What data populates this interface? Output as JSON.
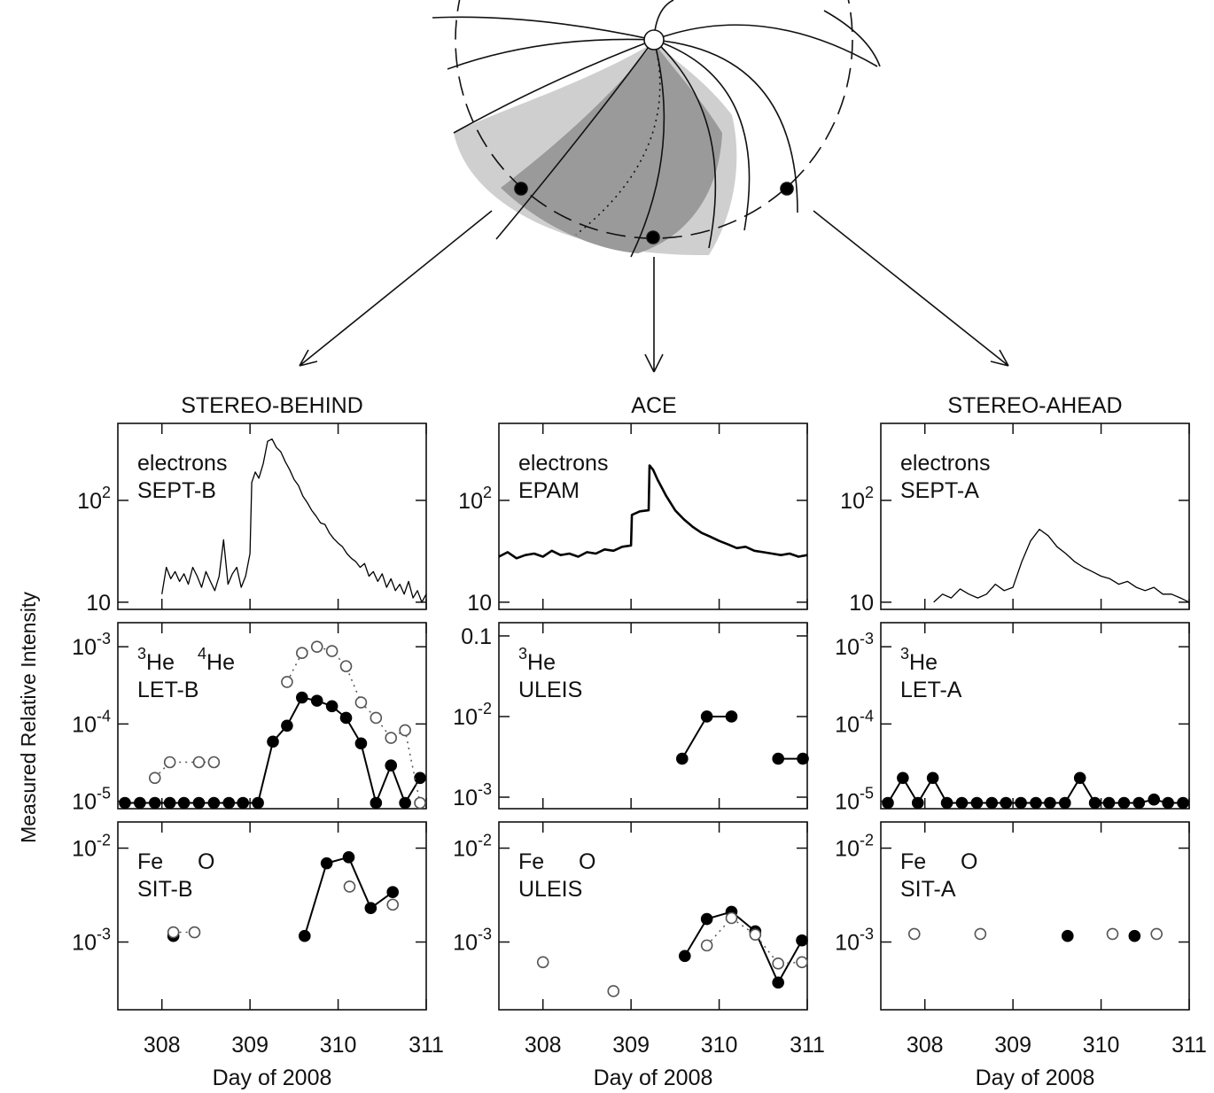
{
  "figure": {
    "ylabel": "Measured Relative Intensity",
    "columns": [
      "STEREO-BEHIND",
      "ACE",
      "STEREO-AHEAD"
    ]
  },
  "chart_data": [
    {
      "type": "line",
      "log_y": true,
      "labels": [
        "electrons",
        "SEPT-B"
      ],
      "xlim": [
        307.5,
        311
      ],
      "xticks": [
        308,
        309,
        310,
        311
      ],
      "ylim": [
        8.5,
        570
      ],
      "yticks": [
        10,
        {
          "value": 100,
          "label": "10",
          "exponent": "2"
        }
      ],
      "series": [
        {
          "color": "#000000",
          "marker": "none",
          "line": "solid",
          "linewidth": 1.3,
          "x": [
            308.0,
            308.05,
            308.1,
            308.15,
            308.2,
            308.25,
            308.3,
            308.35,
            308.4,
            308.45,
            308.5,
            308.55,
            308.6,
            308.65,
            308.7,
            308.75,
            308.8,
            308.85,
            308.9,
            308.95,
            309.0,
            309.02,
            309.06,
            309.1,
            309.15,
            309.2,
            309.25,
            309.3,
            309.35,
            309.4,
            309.45,
            309.5,
            309.55,
            309.6,
            309.65,
            309.7,
            309.75,
            309.8,
            309.85,
            309.9,
            309.95,
            310.0,
            310.05,
            310.1,
            310.15,
            310.2,
            310.25,
            310.3,
            310.35,
            310.4,
            310.45,
            310.5,
            310.55,
            310.6,
            310.65,
            310.7,
            310.75,
            310.8,
            310.85,
            310.9,
            310.95,
            311.0
          ],
          "values": [
            12,
            22,
            17,
            20,
            16,
            19,
            15,
            22,
            18,
            14,
            20,
            16,
            13,
            18,
            41,
            15,
            19,
            22,
            14,
            18,
            30,
            150,
            190,
            165,
            230,
            380,
            400,
            330,
            300,
            240,
            200,
            160,
            140,
            110,
            95,
            80,
            70,
            60,
            58,
            48,
            42,
            38,
            35,
            30,
            27,
            25,
            22,
            24,
            18,
            20,
            16,
            19,
            14,
            17,
            13,
            15,
            12,
            16,
            11,
            13,
            10,
            12
          ]
        }
      ]
    },
    {
      "type": "line",
      "log_y": true,
      "labels": [
        "electrons",
        "EPAM"
      ],
      "xlim": [
        307.5,
        311
      ],
      "xticks": [
        308,
        309,
        310,
        311
      ],
      "ylim": [
        8.5,
        570
      ],
      "yticks": [
        10,
        {
          "value": 100,
          "label": "10",
          "exponent": "2"
        }
      ],
      "series": [
        {
          "color": "#000000",
          "marker": "none",
          "line": "solid",
          "linewidth": 2.6,
          "x": [
            307.5,
            307.6,
            307.7,
            307.8,
            307.9,
            308.0,
            308.1,
            308.2,
            308.3,
            308.4,
            308.5,
            308.6,
            308.7,
            308.8,
            308.9,
            309.0,
            309.01,
            309.1,
            309.2,
            309.21,
            309.25,
            309.3,
            309.4,
            309.5,
            309.6,
            309.7,
            309.8,
            309.9,
            310.0,
            310.1,
            310.2,
            310.3,
            310.4,
            310.5,
            310.6,
            310.7,
            310.8,
            310.9,
            311.0
          ],
          "values": [
            28,
            31,
            27,
            29,
            30,
            28,
            32,
            29,
            30,
            28,
            31,
            30,
            33,
            32,
            35,
            36,
            72,
            78,
            80,
            220,
            200,
            160,
            110,
            80,
            65,
            55,
            48,
            44,
            40,
            37,
            34,
            35,
            32,
            31,
            30,
            29,
            30,
            28,
            29
          ]
        }
      ]
    },
    {
      "type": "line",
      "log_y": true,
      "labels": [
        "electrons",
        "SEPT-A"
      ],
      "xlim": [
        307.5,
        311
      ],
      "xticks": [
        308,
        309,
        310,
        311
      ],
      "ylim": [
        8.5,
        570
      ],
      "yticks": [
        10,
        {
          "value": 100,
          "label": "10",
          "exponent": "2"
        }
      ],
      "series": [
        {
          "color": "#000000",
          "marker": "none",
          "line": "solid",
          "linewidth": 1.3,
          "x": [
            308.1,
            308.2,
            308.3,
            308.4,
            308.5,
            308.6,
            308.7,
            308.8,
            308.9,
            309.0,
            309.1,
            309.2,
            309.3,
            309.4,
            309.5,
            309.6,
            309.7,
            309.8,
            309.9,
            310.0,
            310.1,
            310.2,
            310.3,
            310.4,
            310.5,
            310.6,
            310.7,
            310.8,
            310.9,
            311.0
          ],
          "values": [
            10,
            12,
            11,
            13.5,
            12,
            11,
            12,
            15,
            13,
            14,
            25,
            40,
            52,
            45,
            35,
            30,
            25,
            22,
            20,
            18,
            17,
            15,
            16,
            14,
            13,
            14,
            12,
            12,
            11,
            10
          ]
        }
      ]
    },
    {
      "type": "line",
      "log_y": true,
      "species": [
        {
          "mass": "3",
          "name": "He"
        },
        {
          "mass": "4",
          "name": "He"
        }
      ],
      "labels": [
        "LET-B"
      ],
      "xlim": [
        307.5,
        311
      ],
      "xticks": [
        308,
        309,
        310,
        311
      ],
      "ylim": [
        8e-06,
        0.00205
      ],
      "yticks": [
        {
          "value": 0.001,
          "label": "10",
          "exponent": "-3"
        },
        {
          "value": 0.0001,
          "label": "10",
          "exponent": "-4"
        },
        {
          "value": 1e-05,
          "label": "10",
          "exponent": "-5"
        }
      ],
      "series": [
        {
          "color": "#000000",
          "marker": "filled",
          "line": "solid",
          "linewidth": 2,
          "x": [
            307.58,
            307.75,
            307.92,
            308.09,
            308.25,
            308.42,
            308.59,
            308.76,
            308.92,
            309.09,
            309.26,
            309.42,
            309.59,
            309.76,
            309.93,
            310.09,
            310.26,
            310.43,
            310.6,
            310.76,
            310.93
          ],
          "values": [
            9.5e-06,
            9.5e-06,
            9.5e-06,
            9.5e-06,
            9.5e-06,
            9.5e-06,
            9.5e-06,
            9.5e-06,
            9.5e-06,
            9.5e-06,
            5.9e-05,
            9.5e-05,
            0.00022,
            0.0002,
            0.00017,
            0.00012,
            5.6e-05,
            9.5e-06,
            2.9e-05,
            9.5e-06,
            2e-05
          ]
        },
        {
          "color": "#555555",
          "marker": "open",
          "line": "dotted",
          "linewidth": 1.5,
          "x": [
            307.92,
            308.09,
            308.42,
            308.59,
            null,
            309.42,
            309.59,
            309.76,
            309.93,
            310.09,
            310.26,
            310.43,
            310.6,
            310.76,
            310.93
          ],
          "values": [
            2e-05,
            3.2e-05,
            3.2e-05,
            3.2e-05,
            null,
            0.00035,
            0.00083,
            0.001,
            0.00088,
            0.00056,
            0.00019,
            0.00012,
            6.6e-05,
            8.3e-05,
            9.5e-06
          ]
        }
      ]
    },
    {
      "type": "line",
      "log_y": true,
      "species": [
        {
          "mass": "3",
          "name": "He"
        }
      ],
      "labels": [
        "ULEIS"
      ],
      "xlim": [
        307.5,
        311
      ],
      "xticks": [
        308,
        309,
        310,
        311
      ],
      "ylim": [
        0.00072,
        0.146
      ],
      "yticks": [
        0.1,
        {
          "value": 0.01,
          "label": "10",
          "exponent": "-2"
        },
        {
          "value": 0.001,
          "label": "10",
          "exponent": "-3"
        }
      ],
      "series": [
        {
          "color": "#000000",
          "marker": "filled",
          "line": "solid",
          "linewidth": 2,
          "x": [
            309.58,
            309.86,
            310.14,
            null,
            310.67,
            310.95
          ],
          "values": [
            0.003,
            0.01,
            0.01,
            null,
            0.003,
            0.003
          ]
        }
      ]
    },
    {
      "type": "line",
      "log_y": true,
      "species": [
        {
          "mass": "3",
          "name": "He"
        }
      ],
      "labels": [
        "LET-A"
      ],
      "xlim": [
        307.5,
        311
      ],
      "xticks": [
        308,
        309,
        310,
        311
      ],
      "ylim": [
        8e-06,
        0.00205
      ],
      "yticks": [
        {
          "value": 0.001,
          "label": "10",
          "exponent": "-3"
        },
        {
          "value": 0.0001,
          "label": "10",
          "exponent": "-4"
        },
        {
          "value": 1e-05,
          "label": "10",
          "exponent": "-5"
        }
      ],
      "series": [
        {
          "color": "#000000",
          "marker": "filled",
          "line": "solid",
          "linewidth": 2,
          "x": [
            307.58,
            307.75,
            307.92,
            308.09,
            308.25,
            308.42,
            308.59,
            308.76,
            308.92,
            309.09,
            309.26,
            309.42,
            309.59,
            309.76,
            309.93,
            310.09,
            310.26,
            310.43,
            310.6,
            310.76,
            310.93
          ],
          "values": [
            9.5e-06,
            2e-05,
            9.5e-06,
            2e-05,
            9.5e-06,
            9.5e-06,
            9.5e-06,
            9.5e-06,
            9.5e-06,
            9.5e-06,
            9.5e-06,
            9.5e-06,
            9.5e-06,
            2e-05,
            9.5e-06,
            9.5e-06,
            9.5e-06,
            9.5e-06,
            1.05e-05,
            9.5e-06,
            9.5e-06
          ]
        }
      ]
    },
    {
      "type": "line",
      "log_y": true,
      "species": [
        {
          "name": "Fe"
        },
        {
          "name": "O"
        }
      ],
      "labels": [
        "SIT-B"
      ],
      "xlim": [
        307.5,
        311
      ],
      "xticks": [
        308,
        309,
        310,
        311
      ],
      "ylim": [
        0.00019,
        0.019
      ],
      "yticks": [
        {
          "value": 0.01,
          "label": "10",
          "exponent": "-2"
        },
        {
          "value": 0.001,
          "label": "10",
          "exponent": "-3"
        }
      ],
      "xlabel": "Day of 2008",
      "series": [
        {
          "color": "#000000",
          "marker": "filled",
          "line": "solid",
          "linewidth": 2,
          "x": [
            308.13,
            null,
            309.62,
            309.87,
            310.12,
            310.37,
            310.62
          ],
          "values": [
            0.00116,
            null,
            0.00116,
            0.0069,
            0.008,
            0.0023,
            0.0034
          ]
        },
        {
          "color": "#555555",
          "marker": "open",
          "line": "dotted",
          "linewidth": 1.5,
          "x": [
            308.13,
            308.37,
            null,
            310.13,
            null,
            310.62
          ],
          "values": [
            0.00127,
            0.00127,
            null,
            0.0039,
            null,
            0.0025
          ]
        }
      ]
    },
    {
      "type": "line",
      "log_y": true,
      "species": [
        {
          "name": "Fe"
        },
        {
          "name": "O"
        }
      ],
      "labels": [
        "ULEIS"
      ],
      "xlim": [
        307.5,
        311
      ],
      "xticks": [
        308,
        309,
        310,
        311
      ],
      "ylim": [
        0.00019,
        0.019
      ],
      "yticks": [
        {
          "value": 0.01,
          "label": "10",
          "exponent": "-2"
        },
        {
          "value": 0.001,
          "label": "10",
          "exponent": "-3"
        }
      ],
      "xlabel": "Day of 2008",
      "series": [
        {
          "color": "#000000",
          "marker": "filled",
          "line": "solid",
          "linewidth": 2,
          "x": [
            309.61,
            309.86,
            310.14,
            310.41,
            310.67,
            310.94
          ],
          "values": [
            0.00071,
            0.00176,
            0.0021,
            0.0013,
            0.00037,
            0.00104
          ]
        },
        {
          "color": "#555555",
          "marker": "open",
          "line": "dotted",
          "linewidth": 1.5,
          "x": [
            308.0,
            null,
            308.8,
            null,
            309.86,
            310.14,
            310.41,
            310.67,
            310.94
          ],
          "values": [
            0.00061,
            null,
            0.0003,
            null,
            0.00092,
            0.0018,
            0.0012,
            0.00059,
            0.00061
          ]
        }
      ]
    },
    {
      "type": "line",
      "log_y": true,
      "species": [
        {
          "name": "Fe"
        },
        {
          "name": "O"
        }
      ],
      "labels": [
        "SIT-A"
      ],
      "xlim": [
        307.5,
        311
      ],
      "xticks": [
        308,
        309,
        310,
        311
      ],
      "ylim": [
        0.00019,
        0.019
      ],
      "yticks": [
        {
          "value": 0.01,
          "label": "10",
          "exponent": "-2"
        },
        {
          "value": 0.001,
          "label": "10",
          "exponent": "-3"
        }
      ],
      "xlabel": "Day of 2008",
      "series": [
        {
          "color": "#000000",
          "marker": "filled",
          "line": "none",
          "linewidth": 2,
          "x": [
            309.62,
            310.38
          ],
          "values": [
            0.00116,
            0.00116
          ]
        },
        {
          "color": "#555555",
          "marker": "open",
          "line": "none",
          "linewidth": 1.5,
          "x": [
            307.88,
            308.63,
            310.13,
            310.63
          ],
          "values": [
            0.00122,
            0.00122,
            0.00122,
            0.00122
          ]
        }
      ]
    }
  ]
}
